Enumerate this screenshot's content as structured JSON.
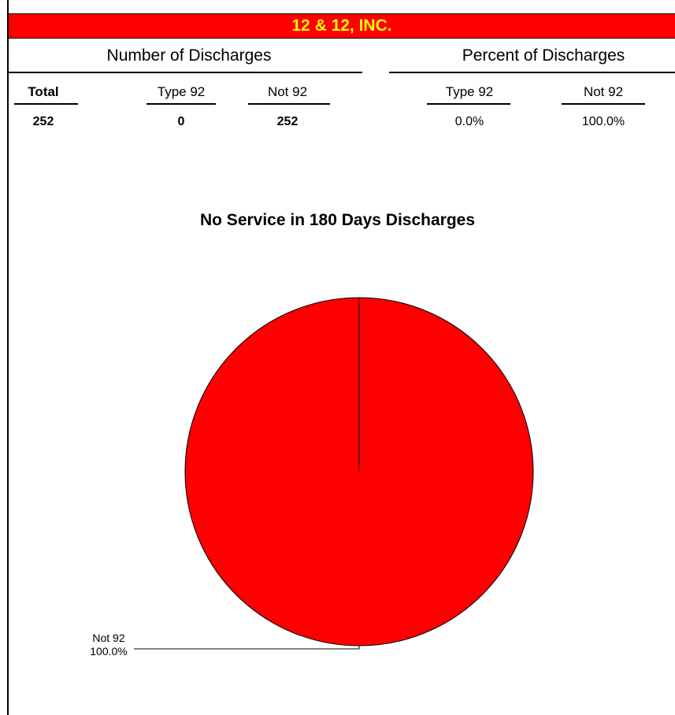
{
  "title": "12 & 12, INC.",
  "colors": {
    "title_bg": "#ff0000",
    "title_text": "#ffff00",
    "pie_fill": "#ff0000"
  },
  "sections": {
    "number": "Number of Discharges",
    "percent": "Percent of Discharges"
  },
  "columns": {
    "total": "Total",
    "number_type92": "Type 92",
    "number_not92": "Not 92",
    "percent_type92": "Type 92",
    "percent_not92": "Not 92"
  },
  "values": {
    "total": "252",
    "number_type92": "0",
    "number_not92": "252",
    "percent_type92": "0.0%",
    "percent_not92": "100.0%"
  },
  "chart_data": {
    "type": "pie",
    "title": "No Service in 180 Days Discharges",
    "slices": [
      {
        "label": "Type 92",
        "value": 0,
        "percent": "0.0%"
      },
      {
        "label": "Not 92",
        "value": 252,
        "percent": "100.0%"
      }
    ]
  }
}
